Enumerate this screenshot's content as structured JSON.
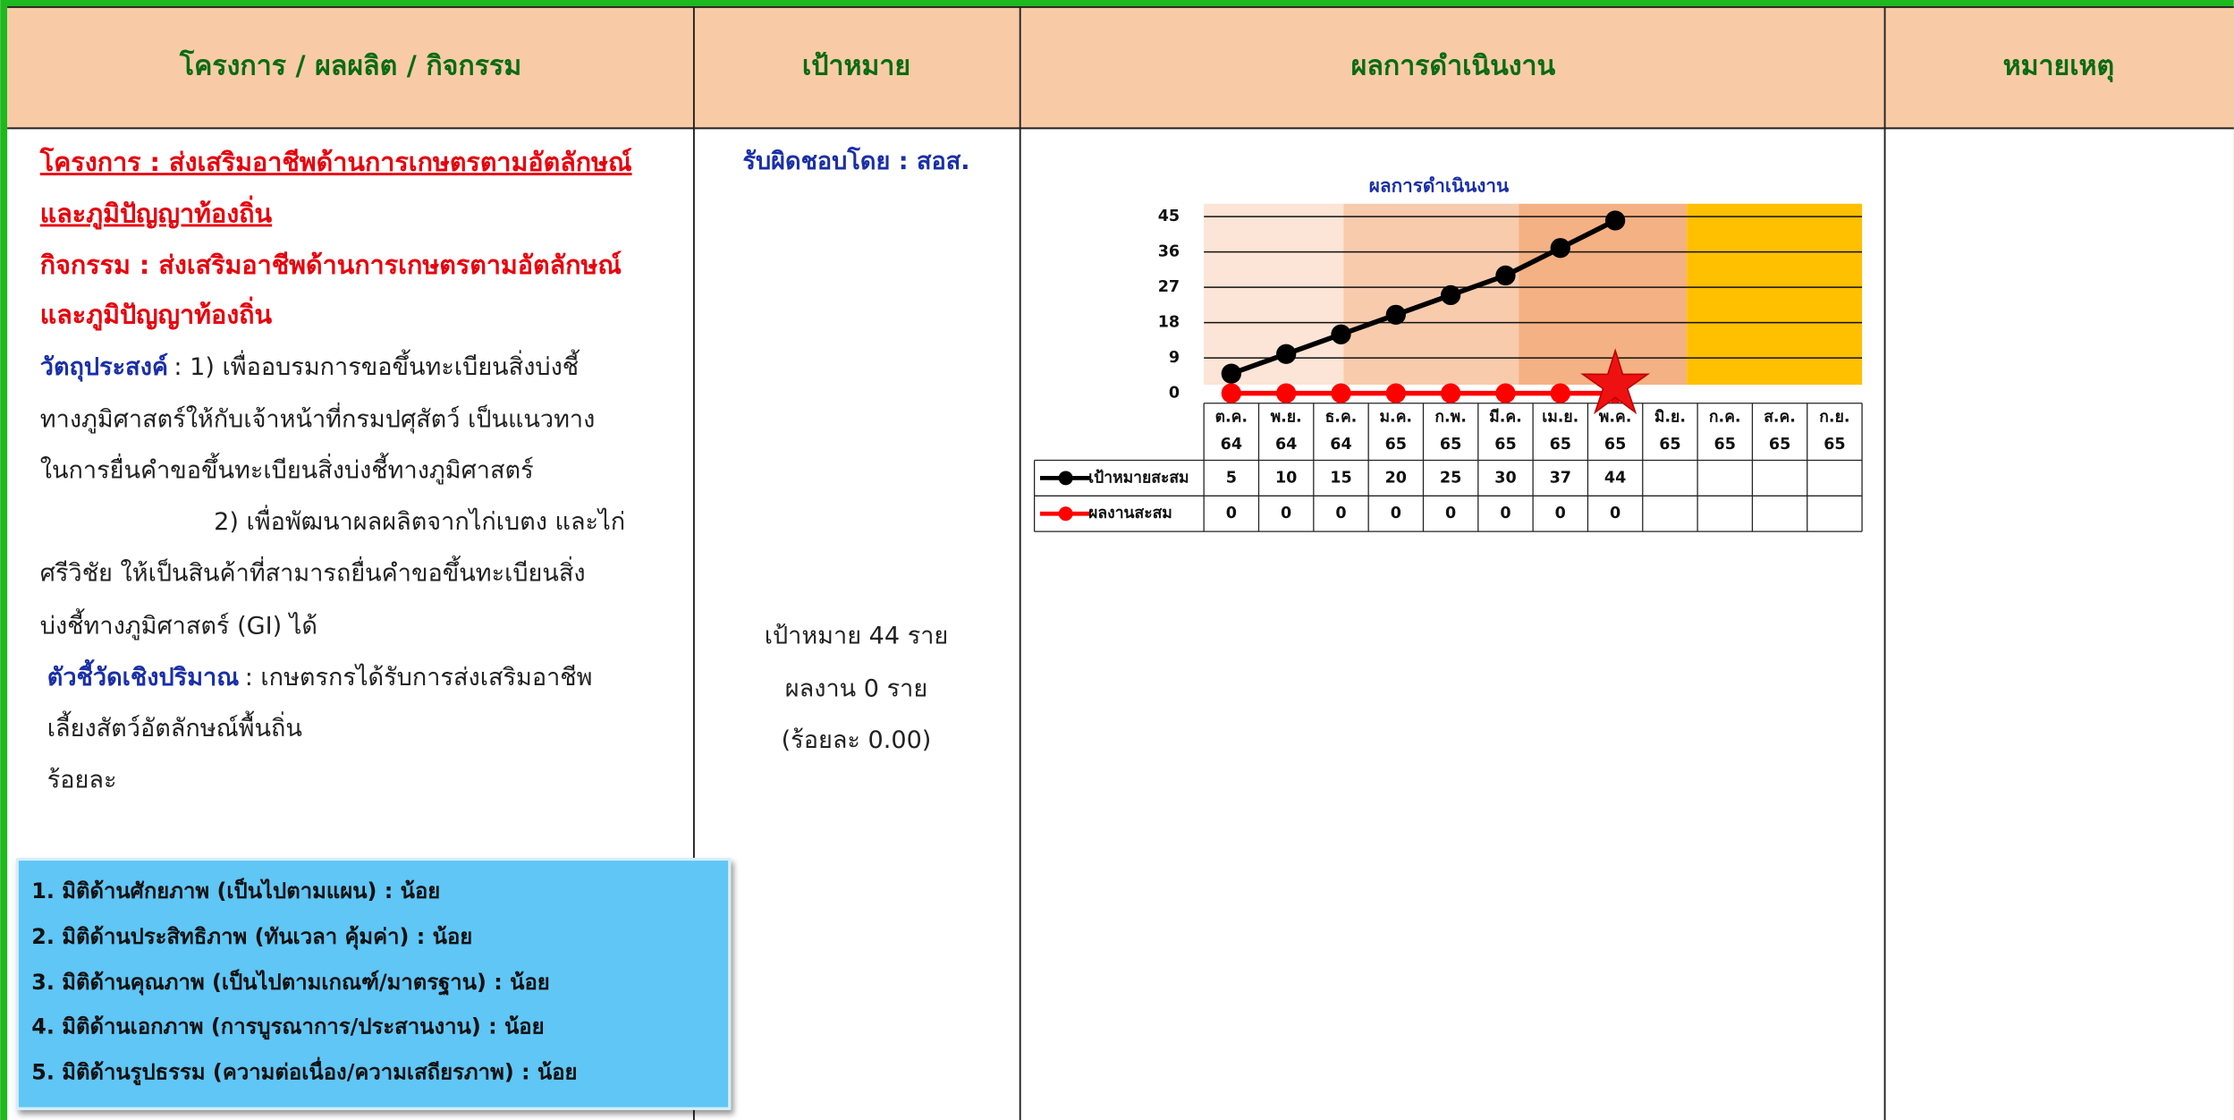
{
  "header": {
    "columns": [
      "โครงการ / ผลผลิต / กิจกรรม",
      "เป้าหมาย",
      "ผลการดำเนินงาน",
      "หมายเหตุ"
    ]
  },
  "project": {
    "title_lines": [
      "โครงการ : ส่งเสริมอาชีพด้านการเกษตรตามอัตลักษณ์",
      "และภูมิปัญญาท้องถิ่น"
    ],
    "activity_lines": [
      "กิจกรรม : ส่งเสริมอาชีพด้านการเกษตรตามอัตลักษณ์",
      "และภูมิปัญญาท้องถิ่น"
    ],
    "objective_label": "วัตถุประสงค์",
    "objective_lines": [
      ": 1) เพื่ออบรมการขอขึ้นทะเบียนสิ่งบ่งชี้",
      "ทางภูมิศาสตร์ให้กับเจ้าหน้าที่กรมปศุสัตว์ เป็นแนวทาง",
      "ในการยื่นคำขอขึ้นทะเบียนสิ่งบ่งชี้ทางภูมิศาสตร์",
      "2) เพื่อพัฒนาผลผลิตจากไก่เบตง และไก่",
      "ศรีวิชัย ให้เป็นสินค้าที่สามารถยื่นคำขอขึ้นทะเบียนสิ่ง",
      "บ่งชี้ทางภูมิศาสตร์ (GI) ได้"
    ],
    "indicator_label": "ตัวชี้วัดเชิงปริมาณ",
    "indicator_lines": [
      ": เกษตรกรได้รับการส่งเสริมอาชีพ",
      "เลี้ยงสัตว์อัตลักษณ์พื้นถิ่น",
      "ร้อยละ"
    ]
  },
  "dimensions": [
    "1. มิติด้านศักยภาพ (เป็นไปตามแผน) : น้อย",
    "2. มิติด้านประสิทธิภาพ (ทันเวลา คุ้มค่า) : น้อย",
    "3. มิติด้านคุณภาพ (เป็นไปตามเกณฑ์/มาตรฐาน) : น้อย",
    "4. มิติด้านเอกภาพ (การบูรณาการ/ประสานงาน) : น้อย",
    "5. มิติด้านรูปธรรม (ความต่อเนื่อง/ความเสถียรภาพ) : น้อย"
  ],
  "target": {
    "responsible": "รับผิดชอบโดย : สอส.",
    "lines": [
      "เป้าหมาย 44 ราย",
      "ผลงาน 0 ราย",
      "(ร้อยละ 0.00)"
    ]
  },
  "chart": {
    "type": "line",
    "title": "ผลการดำเนินงาน",
    "categories": [
      "ต.ค.",
      "พ.ย.",
      "ธ.ค.",
      "ม.ค.",
      "ก.พ.",
      "มี.ค.",
      "เม.ย.",
      "พ.ค.",
      "มิ.ย.",
      "ก.ค.",
      "ส.ค.",
      "ก.ย."
    ],
    "years": [
      "64",
      "64",
      "64",
      "65",
      "65",
      "65",
      "65",
      "65",
      "65",
      "65",
      "65",
      "65"
    ],
    "series": [
      {
        "name": "เป้าหมายสะสม",
        "color": "#000000",
        "values": [
          5,
          10,
          15,
          20,
          25,
          30,
          37,
          44,
          null,
          null,
          null,
          null
        ]
      },
      {
        "name": "ผลงานสะสม",
        "color": "#ff0000",
        "values": [
          0,
          0,
          0,
          0,
          0,
          0,
          0,
          0,
          null,
          null,
          null,
          null
        ]
      }
    ],
    "ylim": [
      0,
      45
    ],
    "yticks": [
      0,
      9,
      18,
      27,
      36,
      45
    ],
    "grid": true
  }
}
